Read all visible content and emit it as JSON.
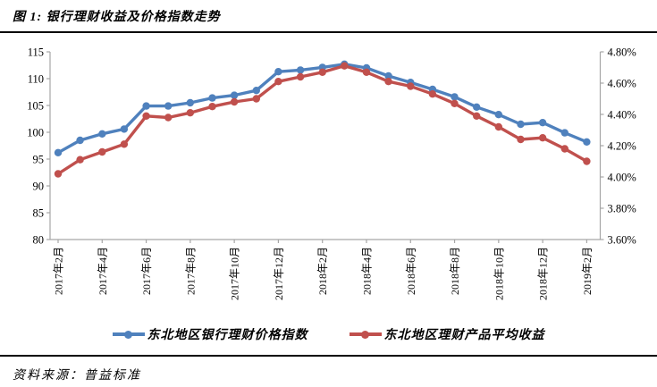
{
  "page": {
    "title": "图 1: 银行理财收益及价格指数走势",
    "source_label": "资料来源：普益标准"
  },
  "chart_data": {
    "type": "line",
    "title": "银行理财收益及价格指数走势",
    "legend_position": "bottom",
    "grid": false,
    "axis_color": "#A6A6A6",
    "x_axis": {
      "labels": [
        "2017年2月",
        "2017年4月",
        "2017年6月",
        "2017年8月",
        "2017年10月",
        "2017年12月",
        "2018年2月",
        "2018年4月",
        "2018年6月",
        "2018年8月",
        "2018年10月",
        "2018年12月",
        "2019年2月"
      ],
      "months_between_labels": 2
    },
    "left_axis": {
      "min": 80,
      "max": 115,
      "step": 5,
      "tick_values": [
        80,
        85,
        90,
        95,
        100,
        105,
        110,
        115
      ],
      "tick_labels": [
        "80",
        "85",
        "90",
        "95",
        "100",
        "105",
        "110",
        "115"
      ]
    },
    "right_axis": {
      "min": 3.6,
      "max": 4.8,
      "step": 0.2,
      "tick_values": [
        3.6,
        3.8,
        4.0,
        4.2,
        4.4,
        4.6,
        4.8
      ],
      "tick_labels": [
        "3.60%",
        "3.80%",
        "4.00%",
        "4.20%",
        "4.40%",
        "4.60%",
        "4.80%"
      ]
    },
    "series": [
      {
        "name": "东北地区银行理财价格指数",
        "axis": "left",
        "color": "#4F81BD",
        "values": [
          96.2,
          98.5,
          99.7,
          100.6,
          104.9,
          104.9,
          105.5,
          106.4,
          106.9,
          107.8,
          111.3,
          111.6,
          112.1,
          112.7,
          112.0,
          110.5,
          109.3,
          108.0,
          106.6,
          104.7,
          103.3,
          101.5,
          101.8,
          99.9,
          98.2
        ]
      },
      {
        "name": "东北地区理财产品平均收益",
        "axis": "right",
        "color": "#C0504D",
        "values": [
          4.02,
          4.11,
          4.16,
          4.21,
          4.39,
          4.38,
          4.41,
          4.45,
          4.48,
          4.5,
          4.61,
          4.64,
          4.67,
          4.71,
          4.67,
          4.61,
          4.58,
          4.53,
          4.47,
          4.39,
          4.32,
          4.24,
          4.25,
          4.18,
          4.1
        ]
      }
    ]
  }
}
